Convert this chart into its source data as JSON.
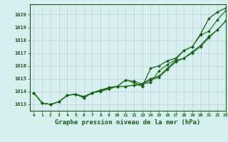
{
  "bg_color": "#d6f0f0",
  "grid_color": "#c8c8d8",
  "line_color_main": "#1a5c1a",
  "line_color_light": "#2e7d2e",
  "xlabel": "Graphe pression niveau de la mer (hPa)",
  "xlabel_fontsize": 6.5,
  "ylim": [
    1012.5,
    1020.8
  ],
  "xlim": [
    -0.5,
    23
  ],
  "yticks": [
    1013,
    1014,
    1015,
    1016,
    1017,
    1018,
    1019,
    1020
  ],
  "xticks": [
    0,
    1,
    2,
    3,
    4,
    5,
    6,
    7,
    8,
    9,
    10,
    11,
    12,
    13,
    14,
    15,
    16,
    17,
    18,
    19,
    20,
    21,
    22,
    23
  ],
  "series1": [
    1013.9,
    1013.1,
    1013.0,
    1013.2,
    1013.7,
    1013.8,
    1013.5,
    1013.9,
    1014.1,
    1014.2,
    1014.4,
    1014.9,
    1014.7,
    1014.4,
    1015.8,
    1016.0,
    1016.4,
    1016.6,
    1017.2,
    1017.5,
    1018.5,
    1019.7,
    1020.2,
    1020.5
  ],
  "series2": [
    1013.9,
    1013.1,
    1013.0,
    1013.2,
    1013.7,
    1013.8,
    1013.6,
    1013.9,
    1014.1,
    1014.3,
    1014.4,
    1014.9,
    1014.8,
    1014.6,
    1014.7,
    1015.6,
    1016.1,
    1016.5,
    1017.2,
    1017.5,
    1018.4,
    1018.7,
    1019.6,
    1020.3
  ],
  "series3": [
    1013.9,
    1013.1,
    1013.0,
    1013.2,
    1013.7,
    1013.8,
    1013.6,
    1013.9,
    1014.1,
    1014.3,
    1014.4,
    1014.4,
    1014.5,
    1014.6,
    1015.0,
    1015.2,
    1015.8,
    1016.4,
    1016.6,
    1017.1,
    1017.6,
    1018.3,
    1018.8,
    1019.5
  ],
  "series4": [
    1013.9,
    1013.1,
    1013.0,
    1013.2,
    1013.7,
    1013.8,
    1013.5,
    1013.9,
    1014.0,
    1014.2,
    1014.4,
    1014.4,
    1014.5,
    1014.5,
    1014.9,
    1015.1,
    1015.7,
    1016.3,
    1016.6,
    1017.0,
    1017.5,
    1018.2,
    1018.8,
    1019.5
  ]
}
